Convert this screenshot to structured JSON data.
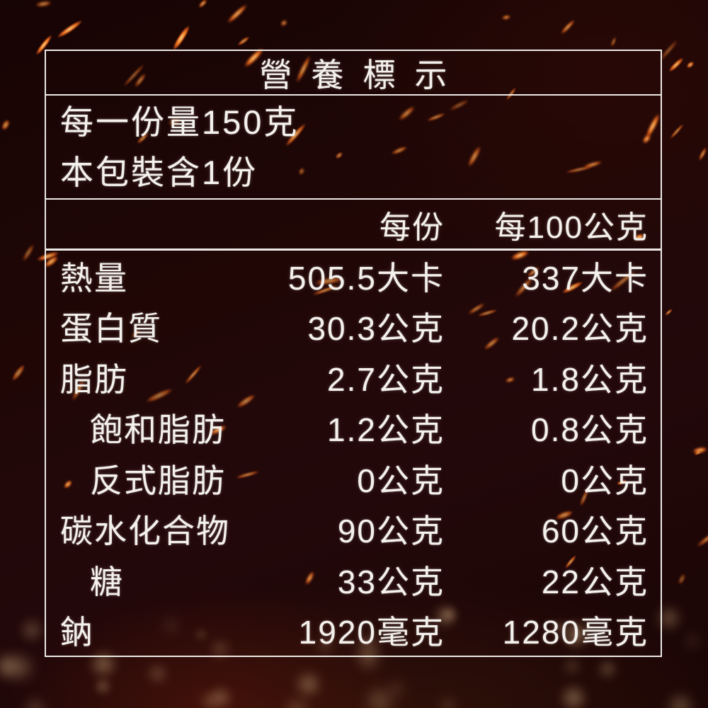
{
  "nutrition_label": {
    "title": "營養標示",
    "serving_info": {
      "serving_size": "每一份量150克",
      "servings_per_package": "本包裝含1份"
    },
    "column_headers": {
      "per_serving": "每份",
      "per_100g": "每100公克"
    },
    "rows": [
      {
        "name": "熱量",
        "indent": false,
        "per_serving": "505.5大卡",
        "per_100g": "337大卡"
      },
      {
        "name": "蛋白質",
        "indent": false,
        "per_serving": "30.3公克",
        "per_100g": "20.2公克"
      },
      {
        "name": "脂肪",
        "indent": false,
        "per_serving": "2.7公克",
        "per_100g": "1.8公克"
      },
      {
        "name": "飽和脂肪",
        "indent": true,
        "per_serving": "1.2公克",
        "per_100g": "0.8公克"
      },
      {
        "name": "反式脂肪",
        "indent": true,
        "per_serving": "0公克",
        "per_100g": "0公克"
      },
      {
        "name": "碳水化合物",
        "indent": false,
        "per_serving": "90公克",
        "per_100g": "60公克"
      },
      {
        "name": "糖",
        "indent": true,
        "per_serving": "33公克",
        "per_100g": "22公克"
      },
      {
        "name": "鈉",
        "indent": false,
        "per_serving": "1920毫克",
        "per_100g": "1280毫克"
      }
    ],
    "colors": {
      "border_line": "#f8f6f2",
      "text": "#f4f1ec",
      "background_dark": "#1d0605",
      "spark_orange": "#ff8c2a",
      "bokeh_gold": "#c9a06a"
    }
  }
}
